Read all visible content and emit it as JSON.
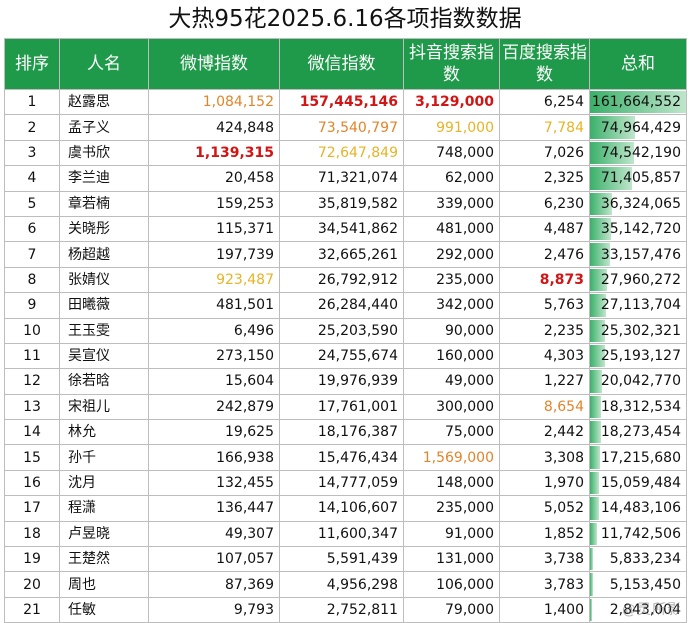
{
  "title": "大热95花2025.6.16各项指数数据",
  "headers": {
    "rank": "排序",
    "name": "人名",
    "weibo": "微博指数",
    "wechat": "微信指数",
    "douyin": "抖音搜索指数",
    "baidu": "百度搜索指数",
    "total": "总和"
  },
  "colors": {
    "header_bg": "#1f9a4a",
    "red": "#d21414",
    "orange": "#e2842a",
    "yellow": "#e7b326"
  },
  "rows": [
    {
      "rank": "1",
      "name": "赵露思",
      "weibo": "1,084,152",
      "wechat": "157,445,146",
      "douyin": "3,129,000",
      "baidu": "6,254",
      "total": "161,664,552",
      "total_value": 161664552,
      "hl": {
        "weibo": "orange",
        "wechat": "red",
        "douyin": "red"
      }
    },
    {
      "rank": "2",
      "name": "孟子义",
      "weibo": "424,848",
      "wechat": "73,540,797",
      "douyin": "991,000",
      "baidu": "7,784",
      "total": "74,964,429",
      "total_value": 74964429,
      "hl": {
        "wechat": "orange",
        "douyin": "yellow",
        "baidu": "yellow"
      }
    },
    {
      "rank": "3",
      "name": "虞书欣",
      "weibo": "1,139,315",
      "wechat": "72,647,849",
      "douyin": "748,000",
      "baidu": "7,026",
      "total": "74,542,190",
      "total_value": 74542190,
      "hl": {
        "weibo": "red",
        "wechat": "yellow"
      }
    },
    {
      "rank": "4",
      "name": "李兰迪",
      "weibo": "20,458",
      "wechat": "71,321,074",
      "douyin": "62,000",
      "baidu": "2,325",
      "total": "71,405,857",
      "total_value": 71405857,
      "hl": {}
    },
    {
      "rank": "5",
      "name": "章若楠",
      "weibo": "159,253",
      "wechat": "35,819,582",
      "douyin": "339,000",
      "baidu": "6,230",
      "total": "36,324,065",
      "total_value": 36324065,
      "hl": {}
    },
    {
      "rank": "6",
      "name": "关晓彤",
      "weibo": "115,371",
      "wechat": "34,541,862",
      "douyin": "481,000",
      "baidu": "4,487",
      "total": "35,142,720",
      "total_value": 35142720,
      "hl": {}
    },
    {
      "rank": "7",
      "name": "杨超越",
      "weibo": "197,739",
      "wechat": "32,665,261",
      "douyin": "292,000",
      "baidu": "2,476",
      "total": "33,157,476",
      "total_value": 33157476,
      "hl": {}
    },
    {
      "rank": "8",
      "name": "张婧仪",
      "weibo": "923,487",
      "wechat": "26,792,912",
      "douyin": "235,000",
      "baidu": "8,873",
      "total": "27,960,272",
      "total_value": 27960272,
      "hl": {
        "weibo": "yellow",
        "baidu": "red"
      }
    },
    {
      "rank": "9",
      "name": "田曦薇",
      "weibo": "481,501",
      "wechat": "26,284,440",
      "douyin": "342,000",
      "baidu": "5,763",
      "total": "27,113,704",
      "total_value": 27113704,
      "hl": {}
    },
    {
      "rank": "10",
      "name": "王玉雯",
      "weibo": "6,496",
      "wechat": "25,203,590",
      "douyin": "90,000",
      "baidu": "2,235",
      "total": "25,302,321",
      "total_value": 25302321,
      "hl": {}
    },
    {
      "rank": "11",
      "name": "吴宣仪",
      "weibo": "273,150",
      "wechat": "24,755,674",
      "douyin": "160,000",
      "baidu": "4,303",
      "total": "25,193,127",
      "total_value": 25193127,
      "hl": {}
    },
    {
      "rank": "12",
      "name": "徐若晗",
      "weibo": "15,604",
      "wechat": "19,976,939",
      "douyin": "49,000",
      "baidu": "1,227",
      "total": "20,042,770",
      "total_value": 20042770,
      "hl": {}
    },
    {
      "rank": "13",
      "name": "宋祖儿",
      "weibo": "242,879",
      "wechat": "17,761,001",
      "douyin": "300,000",
      "baidu": "8,654",
      "total": "18,312,534",
      "total_value": 18312534,
      "hl": {
        "baidu": "orange"
      }
    },
    {
      "rank": "14",
      "name": "林允",
      "weibo": "19,625",
      "wechat": "18,176,387",
      "douyin": "75,000",
      "baidu": "2,442",
      "total": "18,273,454",
      "total_value": 18273454,
      "hl": {}
    },
    {
      "rank": "15",
      "name": "孙千",
      "weibo": "166,938",
      "wechat": "15,476,434",
      "douyin": "1,569,000",
      "baidu": "3,308",
      "total": "17,215,680",
      "total_value": 17215680,
      "hl": {
        "douyin": "orange"
      }
    },
    {
      "rank": "16",
      "name": "沈月",
      "weibo": "132,455",
      "wechat": "14,777,059",
      "douyin": "148,000",
      "baidu": "1,970",
      "total": "15,059,484",
      "total_value": 15059484,
      "hl": {}
    },
    {
      "rank": "17",
      "name": "程潇",
      "weibo": "136,447",
      "wechat": "14,106,607",
      "douyin": "235,000",
      "baidu": "5,052",
      "total": "14,483,106",
      "total_value": 14483106,
      "hl": {}
    },
    {
      "rank": "18",
      "name": "卢昱晓",
      "weibo": "49,307",
      "wechat": "11,600,347",
      "douyin": "91,000",
      "baidu": "1,852",
      "total": "11,742,506",
      "total_value": 11742506,
      "hl": {}
    },
    {
      "rank": "19",
      "name": "王楚然",
      "weibo": "107,057",
      "wechat": "5,591,439",
      "douyin": "131,000",
      "baidu": "3,738",
      "total": "5,833,234",
      "total_value": 5833234,
      "hl": {}
    },
    {
      "rank": "20",
      "name": "周也",
      "weibo": "87,369",
      "wechat": "4,956,298",
      "douyin": "106,000",
      "baidu": "3,783",
      "total": "5,153,450",
      "total_value": 5153450,
      "hl": {}
    },
    {
      "rank": "21",
      "name": "任敏",
      "weibo": "9,793",
      "wechat": "2,752,811",
      "douyin": "79,000",
      "baidu": "1,400",
      "total": "2,843,004",
      "total_value": 2843004,
      "hl": {}
    }
  ],
  "watermark": "@灵所影"
}
